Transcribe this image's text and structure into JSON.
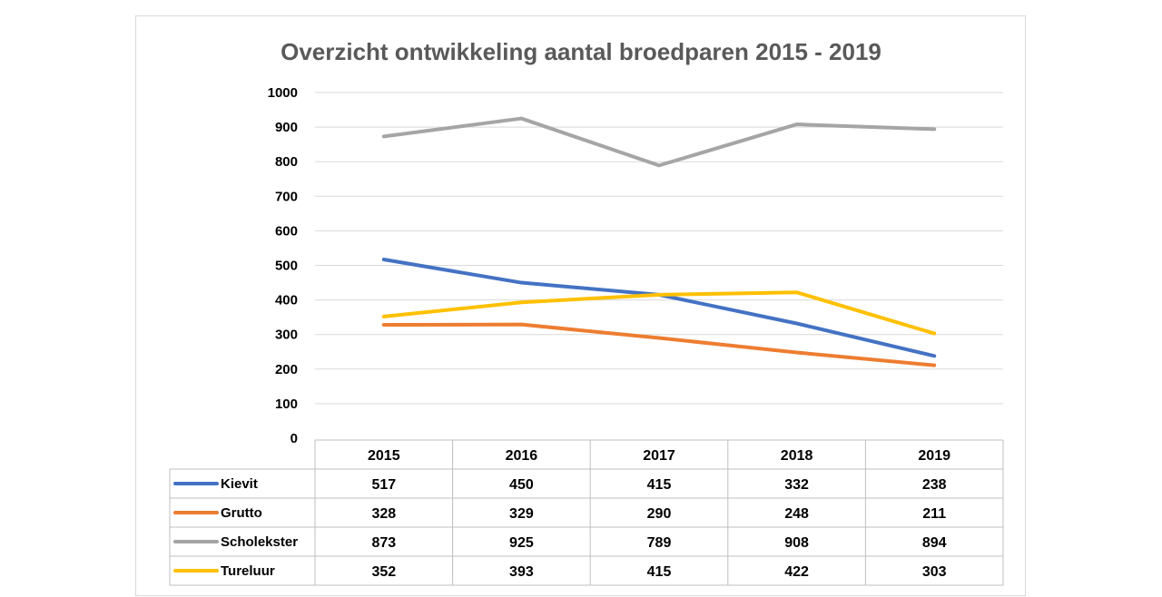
{
  "chart_data": {
    "type": "line",
    "title": "Overzicht ontwikkeling aantal broedparen 2015 - 2019",
    "categories": [
      "2015",
      "2016",
      "2017",
      "2018",
      "2019"
    ],
    "ylim": [
      0,
      1000
    ],
    "yticks": [
      "0",
      "100",
      "200",
      "300",
      "400",
      "500",
      "600",
      "700",
      "800",
      "900",
      "1000"
    ],
    "grid": true,
    "legend_placement": "data-table-bottom",
    "series": [
      {
        "name": "Kievit",
        "color": "#4472c4",
        "values": [
          517,
          450,
          415,
          332,
          238
        ]
      },
      {
        "name": "Grutto",
        "color": "#ed7d31",
        "values": [
          328,
          329,
          290,
          248,
          211
        ]
      },
      {
        "name": "Scholekster",
        "color": "#a5a5a5",
        "values": [
          873,
          925,
          789,
          908,
          894
        ]
      },
      {
        "name": "Tureluur",
        "color": "#ffc000",
        "values": [
          352,
          393,
          415,
          422,
          303
        ]
      }
    ]
  }
}
